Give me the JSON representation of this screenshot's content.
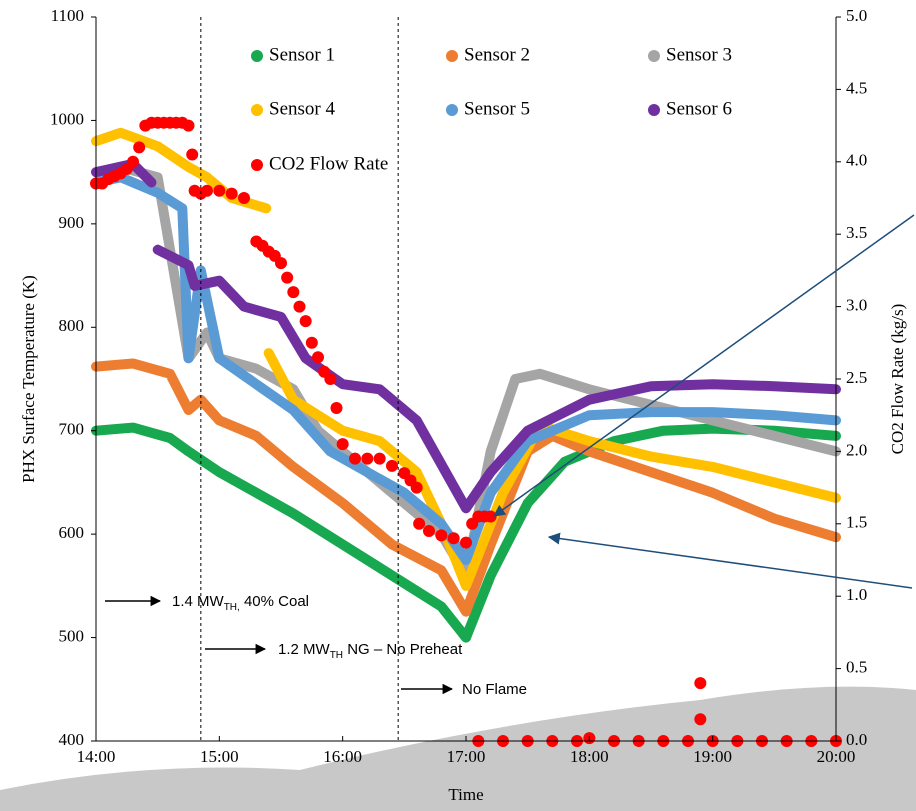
{
  "chart_data": {
    "type": "line",
    "xlabel": "Time",
    "ylabel": "PHX Surface Temperature (K)",
    "y2label": "CO2 Flow Rate (kg/s)",
    "xlim": [
      14,
      20
    ],
    "ylim": [
      400,
      1100
    ],
    "y2lim": [
      0,
      5
    ],
    "xticks": [
      {
        "value": 14,
        "label": "14:00"
      },
      {
        "value": 15,
        "label": "15:00"
      },
      {
        "value": 16,
        "label": "16:00"
      },
      {
        "value": 17,
        "label": "17:00"
      },
      {
        "value": 18,
        "label": "18:00"
      },
      {
        "value": 19,
        "label": "19:00"
      },
      {
        "value": 20,
        "label": "20:00"
      }
    ],
    "yticks": [
      400,
      500,
      600,
      700,
      800,
      900,
      1000,
      1100
    ],
    "y2ticks": [
      {
        "value": 0,
        "label": "0.0"
      },
      0.5,
      {
        "value": 1,
        "label": "1.0"
      },
      1.5,
      {
        "value": 2,
        "label": "2.0"
      },
      2.5,
      {
        "value": 3,
        "label": "3.0"
      },
      3.5,
      {
        "value": 4,
        "label": "4.0"
      },
      4.5,
      {
        "value": 5,
        "label": "5.0"
      }
    ],
    "vlines": [
      14.85,
      16.45
    ],
    "annotations": [
      {
        "main": "1.4 MW",
        "sub": "TH,",
        "rest": " 40% Coal"
      },
      {
        "main": "1.2 MW",
        "sub": "TH",
        "rest": " NG – No Preheat"
      },
      {
        "main": "No Flame"
      }
    ],
    "series": [
      {
        "name": "Sensor 1",
        "color": "#18a84f",
        "style": "line",
        "x": [
          14,
          14.3,
          14.6,
          14.75,
          15,
          15.3,
          15.6,
          16,
          16.4,
          16.8,
          17,
          17.2,
          17.5,
          17.8,
          18.2,
          18.6,
          19,
          19.5,
          20
        ],
        "values": [
          700,
          703,
          693,
          680,
          660,
          640,
          620,
          590,
          560,
          530,
          500,
          560,
          630,
          670,
          690,
          700,
          702,
          700,
          695
        ]
      },
      {
        "name": "Sensor 2",
        "color": "#ed7d31",
        "style": "line",
        "x": [
          14,
          14.3,
          14.6,
          14.75,
          14.85,
          15,
          15.3,
          15.6,
          16,
          16.4,
          16.8,
          17,
          17.2,
          17.5,
          17.7,
          18,
          18.5,
          19,
          19.5,
          20
        ],
        "values": [
          762,
          765,
          755,
          720,
          730,
          710,
          695,
          665,
          630,
          590,
          565,
          525,
          590,
          680,
          695,
          680,
          660,
          640,
          615,
          597
        ]
      },
      {
        "name": "Sensor 3",
        "color": "#a5a5a5",
        "style": "line",
        "x": [
          14,
          14.2,
          14.5,
          14.75,
          14.9,
          15,
          15.3,
          15.6,
          15.8,
          16,
          16.4,
          16.8,
          17,
          17.2,
          17.4,
          17.6,
          18,
          18.5,
          19,
          19.5,
          20
        ],
        "values": [
          940,
          955,
          945,
          770,
          795,
          770,
          760,
          740,
          700,
          680,
          640,
          600,
          560,
          680,
          750,
          755,
          740,
          725,
          710,
          695,
          680
        ]
      },
      {
        "name": "Sensor 4",
        "color": "#ffc000",
        "style": "line",
        "x": [
          14,
          14.2,
          14.5,
          14.75,
          14.9,
          15.1,
          15.38,
          15.39,
          15.4,
          15.6,
          16,
          16.3,
          16.6,
          16.8,
          17,
          17.3,
          17.6,
          18,
          18.5,
          19,
          19.5,
          20
        ],
        "values": [
          980,
          988,
          975,
          955,
          945,
          925,
          915,
          null,
          775,
          730,
          700,
          690,
          660,
          610,
          550,
          640,
          705,
          690,
          675,
          665,
          650,
          635
        ]
      },
      {
        "name": "Sensor 5",
        "color": "#5b9bd5",
        "style": "line",
        "x": [
          14,
          14.2,
          14.5,
          14.7,
          14.75,
          14.85,
          15,
          15.3,
          15.6,
          15.9,
          16.2,
          16.5,
          16.8,
          17,
          17.2,
          17.5,
          18,
          18.5,
          19,
          19.5,
          20
        ],
        "values": [
          940,
          945,
          930,
          915,
          770,
          855,
          770,
          745,
          720,
          680,
          660,
          640,
          610,
          575,
          640,
          690,
          715,
          718,
          718,
          715,
          710
        ]
      },
      {
        "name": "Sensor 6",
        "color": "#7030a0",
        "style": "line",
        "x": [
          14,
          14.3,
          14.45,
          14.47,
          14.5,
          14.75,
          14.8,
          15,
          15.2,
          15.5,
          15.7,
          16,
          16.3,
          16.6,
          17,
          17.2,
          17.5,
          18,
          18.5,
          19,
          19.5,
          20
        ],
        "values": [
          950,
          958,
          940,
          null,
          875,
          860,
          840,
          845,
          820,
          810,
          770,
          745,
          740,
          710,
          625,
          660,
          700,
          730,
          743,
          745,
          743,
          740
        ]
      },
      {
        "name": "CO2 Flow Rate",
        "color": "#ff0000",
        "style": "markers",
        "axis": "y2",
        "x": [
          14,
          14.05,
          14.1,
          14.15,
          14.2,
          14.25,
          14.3,
          14.35,
          14.4,
          14.45,
          14.5,
          14.55,
          14.6,
          14.65,
          14.7,
          14.75,
          14.78,
          14.8,
          14.85,
          14.9,
          15,
          15.1,
          15.2,
          15.3,
          15.35,
          15.4,
          15.45,
          15.5,
          15.55,
          15.6,
          15.65,
          15.7,
          15.75,
          15.8,
          15.85,
          15.9,
          15.95,
          16,
          16.1,
          16.2,
          16.3,
          16.4,
          16.5,
          16.55,
          16.6,
          16.62,
          16.7,
          16.8,
          16.9,
          17,
          17.05,
          17.1,
          17.15,
          17.2,
          17.1,
          17.3,
          17.5,
          17.7,
          17.9,
          18,
          18.2,
          18.4,
          18.6,
          18.8,
          19,
          19.2,
          19.4,
          19.6,
          19.8,
          20,
          18.9,
          18.9
        ],
        "values": [
          3.85,
          3.85,
          3.88,
          3.9,
          3.92,
          3.95,
          4.0,
          4.1,
          4.25,
          4.27,
          4.27,
          4.27,
          4.27,
          4.27,
          4.27,
          4.25,
          4.05,
          3.8,
          3.78,
          3.8,
          3.8,
          3.78,
          3.75,
          3.45,
          3.42,
          3.38,
          3.35,
          3.3,
          3.2,
          3.1,
          3.0,
          2.9,
          2.75,
          2.65,
          2.55,
          2.5,
          2.3,
          2.05,
          1.95,
          1.95,
          1.95,
          1.9,
          1.85,
          1.8,
          1.75,
          1.5,
          1.45,
          1.42,
          1.4,
          1.37,
          1.5,
          1.55,
          1.55,
          1.55,
          0,
          0,
          0,
          0,
          0,
          0.02,
          0,
          0,
          0,
          0,
          0,
          0,
          0,
          0,
          0,
          0,
          0.4,
          0.15
        ]
      }
    ]
  }
}
